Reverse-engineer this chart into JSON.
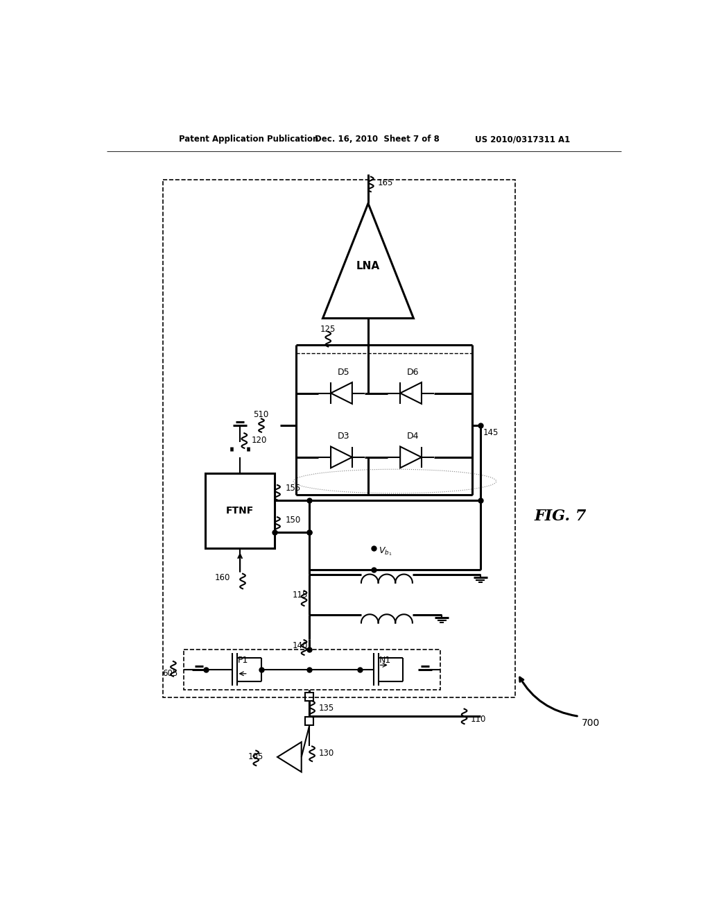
{
  "bg_color": "#ffffff",
  "patent_header_left": "Patent Application Publication",
  "patent_header_mid": "Dec. 16, 2010  Sheet 7 of 8",
  "patent_header_right": "US 2010/0317311 A1",
  "fig_label": "FIG. 7",
  "labels": {
    "LNA": "LNA",
    "FTNF": "FTNF",
    "P1": "P1",
    "N1": "N1",
    "D3": "D3",
    "D4": "D4",
    "D5": "D5",
    "D6": "D6",
    "105": "105",
    "110": "110",
    "115": "115",
    "120": "120",
    "125": "125",
    "130": "130",
    "135": "135",
    "140": "140",
    "145": "145",
    "150": "150",
    "155": "155",
    "160": "160",
    "165": "165",
    "510": "510",
    "605": "605",
    "700": "700"
  }
}
